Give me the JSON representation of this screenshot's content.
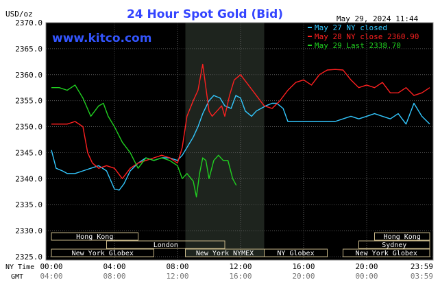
{
  "chart_data": {
    "type": "line",
    "title": "24 Hour Spot Gold (Bid)",
    "unit_label": "USD/oz",
    "timestamp": "May 29, 2024 11:44",
    "watermark": "www.kitco.com",
    "ylim": [
      2325.0,
      2370.0
    ],
    "y_ticks": [
      "2370.0",
      "2365.0",
      "2360.0",
      "2355.0",
      "2350.0",
      "2345.0",
      "2340.0",
      "2335.0",
      "2330.0",
      "2325.0"
    ],
    "x_ticks_ny": [
      "00:00",
      "04:00",
      "08:00",
      "12:00",
      "16:00",
      "20:00",
      "23:59"
    ],
    "x_ticks_gmt": [
      "04:00",
      "08:00",
      "12:00",
      "16:00",
      "20:00",
      "00:00",
      "03:59"
    ],
    "x_row_labels": {
      "ny": "NY Time",
      "gmt": "GMT"
    },
    "highlight_hours": [
      8.5,
      13.5
    ],
    "markets": [
      {
        "name": "Hong Kong",
        "row": 0,
        "start": 0,
        "end": 5.5
      },
      {
        "name": "Hong Kong",
        "row": 0,
        "start": 20.5,
        "end": 24
      },
      {
        "name": "London",
        "row": 1,
        "start": 3.5,
        "end": 11
      },
      {
        "name": "Sydney",
        "row": 1,
        "start": 19.5,
        "end": 24
      },
      {
        "name": "New York Globex",
        "row": 2,
        "start": 0,
        "end": 6.5
      },
      {
        "name": "New York NYMEX",
        "row": 2,
        "start": 8.5,
        "end": 13.5
      },
      {
        "name": "NY Globex",
        "row": 2,
        "start": 13.5,
        "end": 17.5
      },
      {
        "name": "New York Globex",
        "row": 2,
        "start": 18.5,
        "end": 24
      }
    ],
    "series": [
      {
        "name": "May 27 NY closed",
        "legend": "May 27 NY closed",
        "color": "#33c8ff",
        "x": [
          0,
          0.3,
          0.7,
          1,
          1.5,
          2,
          2.5,
          3,
          3.5,
          4,
          4.3,
          4.6,
          5,
          5.5,
          6,
          6.5,
          7,
          7.5,
          8,
          8.3,
          8.7,
          9,
          9.3,
          9.6,
          10,
          10.3,
          10.7,
          11,
          11.4,
          11.7,
          12,
          12.3,
          12.7,
          13,
          13.3,
          13.6,
          14,
          14.3,
          14.7,
          15,
          16,
          17,
          17.5,
          18,
          18.5,
          19,
          19.5,
          20,
          20.5,
          21,
          21.5,
          22,
          22.5,
          23,
          23.5,
          24
        ],
        "y": [
          2345.5,
          2342,
          2341.5,
          2341,
          2341,
          2341.5,
          2342,
          2342.5,
          2341.5,
          2338,
          2337.8,
          2339,
          2341.5,
          2343,
          2344,
          2343.5,
          2344,
          2344,
          2343.5,
          2344.5,
          2346.5,
          2348,
          2350,
          2352.5,
          2355,
          2356,
          2355.5,
          2354,
          2353.5,
          2356,
          2355.5,
          2353,
          2352,
          2353,
          2353.5,
          2354,
          2354.5,
          2354.5,
          2353.5,
          2351,
          2351,
          2351,
          2351,
          2351,
          2351.5,
          2352,
          2351.5,
          2352,
          2352.5,
          2352,
          2351.5,
          2352.5,
          2350.5,
          2354.5,
          2352,
          2350.5
        ]
      },
      {
        "name": "May 28 NY close 2360.90",
        "legend": "May 28 NY close 2360.90",
        "color": "#ff2020",
        "x": [
          0,
          0.5,
          1,
          1.5,
          2,
          2.3,
          2.6,
          3,
          3.5,
          4,
          4.5,
          5,
          5.5,
          6,
          6.5,
          7,
          7.5,
          8,
          8.3,
          8.6,
          9,
          9.3,
          9.6,
          10,
          10.2,
          10.5,
          10.8,
          11,
          11.3,
          11.6,
          12,
          12.5,
          13,
          13.5,
          14,
          14.5,
          15,
          15.5,
          16,
          16.5,
          17,
          17.5,
          18,
          18.5,
          19,
          19.5,
          20,
          20.5,
          21,
          21.5,
          22,
          22.5,
          23,
          23.5,
          24
        ],
        "y": [
          2350.5,
          2350.5,
          2350.5,
          2351,
          2350,
          2345,
          2343,
          2342,
          2342.5,
          2342,
          2340,
          2342,
          2343,
          2343.5,
          2344,
          2344.5,
          2344,
          2343,
          2346,
          2352,
          2355,
          2357,
          2362,
          2353,
          2352,
          2353,
          2354,
          2352,
          2356,
          2359,
          2360,
          2358,
          2356,
          2354,
          2353.5,
          2355,
          2357,
          2358.5,
          2359,
          2358,
          2360,
          2360.9,
          2361,
          2360.9,
          2359,
          2357.5,
          2358,
          2357.5,
          2358.5,
          2356.5,
          2356.5,
          2357.5,
          2356,
          2356.5,
          2357.5
        ]
      },
      {
        "name": "May 29 Last 2338.70",
        "legend": "May 29 Last 2338.70",
        "color": "#20d020",
        "x": [
          0,
          0.5,
          1,
          1.5,
          2,
          2.5,
          3,
          3.3,
          3.6,
          4,
          4.5,
          5,
          5.5,
          6,
          6.5,
          7,
          7.5,
          8,
          8.3,
          8.6,
          9,
          9.2,
          9.4,
          9.6,
          9.8,
          10,
          10.3,
          10.6,
          10.9,
          11.2,
          11.5,
          11.73
        ],
        "y": [
          2357.5,
          2357.5,
          2357,
          2358,
          2355.5,
          2352,
          2354,
          2354.5,
          2352,
          2350,
          2347,
          2345,
          2342,
          2344,
          2343.5,
          2344,
          2343.5,
          2342.5,
          2340,
          2341,
          2339.5,
          2336.5,
          2341,
          2344,
          2343.5,
          2340,
          2343.5,
          2344.5,
          2343.5,
          2343.5,
          2340,
          2338.7
        ]
      }
    ]
  }
}
